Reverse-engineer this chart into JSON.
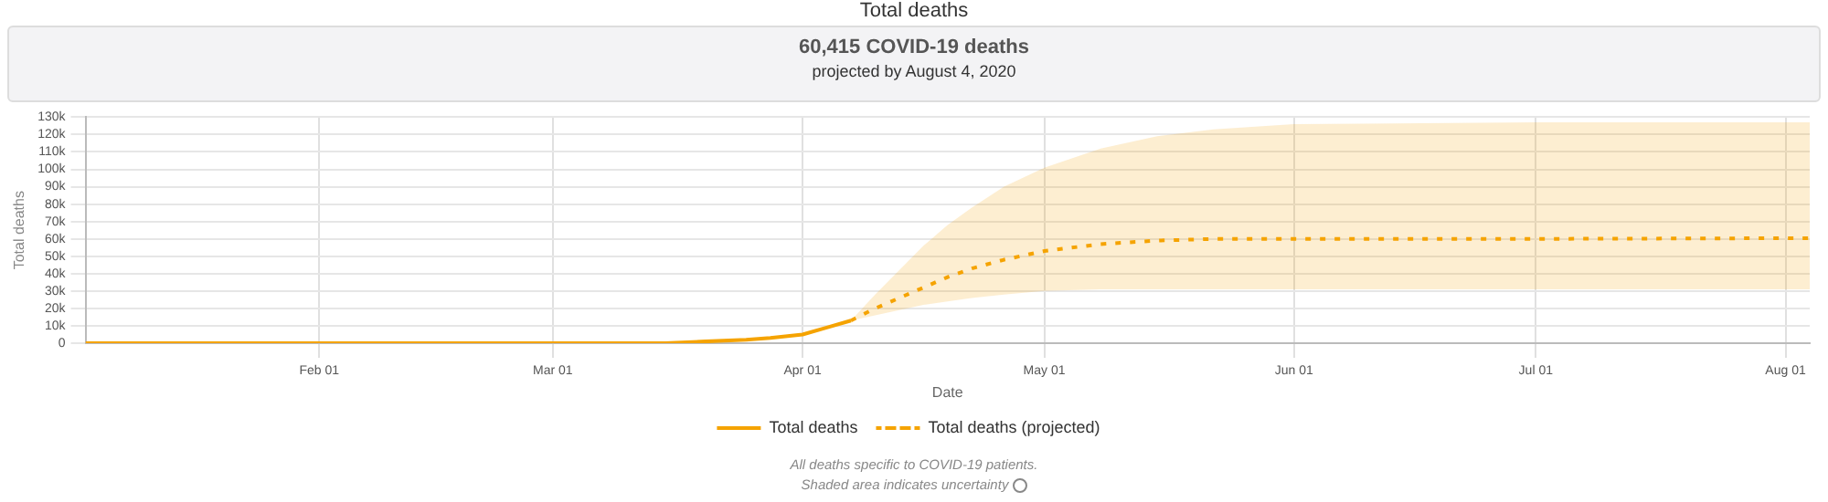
{
  "chart_data": {
    "type": "line",
    "title": "Total deaths",
    "subtitle": "60,415 COVID-19 deaths",
    "annotations": [
      "projected by August 4, 2020",
      "All deaths specific to COVID-19 patients.",
      "Shaded area indicates uncertainty"
    ],
    "xlabel": "Date",
    "ylabel": "Total deaths",
    "series": [
      {
        "name": "Total deaths",
        "color": "#f5a300",
        "line_style": "solid",
        "x": [
          "2020-01-03",
          "2020-02-01",
          "2020-03-01",
          "2020-03-15",
          "2020-03-20",
          "2020-03-25",
          "2020-03-28",
          "2020-04-01",
          "2020-04-04",
          "2020-04-07"
        ],
        "values": [
          0,
          0,
          0,
          0,
          1000,
          2000,
          3000,
          5000,
          9000,
          13000
        ]
      },
      {
        "name": "Total deaths (projected)",
        "color": "#f5a300",
        "line_style": "dotted",
        "x": [
          "2020-04-07",
          "2020-04-10",
          "2020-04-13",
          "2020-04-16",
          "2020-04-19",
          "2020-04-22",
          "2020-04-26",
          "2020-05-01",
          "2020-05-08",
          "2020-05-15",
          "2020-05-22",
          "2020-06-01",
          "2020-07-01",
          "2020-08-04"
        ],
        "values": [
          13000,
          20000,
          26000,
          32000,
          38000,
          43000,
          48000,
          53000,
          57000,
          59000,
          60000,
          60000,
          60000,
          60415
        ],
        "lower": [
          13000,
          16000,
          19000,
          22000,
          24000,
          26000,
          28000,
          30000,
          31000,
          31000,
          31000,
          31000,
          31000,
          31000
        ],
        "upper": [
          13000,
          28000,
          42000,
          56000,
          68000,
          78000,
          90000,
          101000,
          112000,
          119000,
          123000,
          126000,
          127000,
          127000
        ]
      }
    ],
    "xlim": [
      "2020-01-03",
      "2020-08-04"
    ],
    "xticks": [
      {
        "value": "2020-02-01",
        "label": "Feb 01"
      },
      {
        "value": "2020-03-01",
        "label": "Mar 01"
      },
      {
        "value": "2020-04-01",
        "label": "Apr 01"
      },
      {
        "value": "2020-05-01",
        "label": "May 01"
      },
      {
        "value": "2020-06-01",
        "label": "Jun 01"
      },
      {
        "value": "2020-07-01",
        "label": "Jul 01"
      },
      {
        "value": "2020-08-01",
        "label": "Aug 01"
      }
    ],
    "ylim": [
      0,
      130000
    ],
    "yticks": [
      0,
      {
        "value": 10000,
        "label": "10k"
      },
      {
        "value": 20000,
        "label": "20k"
      },
      {
        "value": 30000,
        "label": "30k"
      },
      {
        "value": 40000,
        "label": "40k"
      },
      {
        "value": 50000,
        "label": "50k"
      },
      {
        "value": 60000,
        "label": "60k"
      },
      {
        "value": 70000,
        "label": "70k"
      },
      {
        "value": 80000,
        "label": "80k"
      },
      {
        "value": 90000,
        "label": "90k"
      },
      {
        "value": 100000,
        "label": "100k"
      },
      {
        "value": 110000,
        "label": "110k"
      },
      {
        "value": 120000,
        "label": "120k"
      },
      {
        "value": 130000,
        "label": "130k"
      }
    ],
    "grid": true,
    "legend": "bottom",
    "marker": "none"
  }
}
